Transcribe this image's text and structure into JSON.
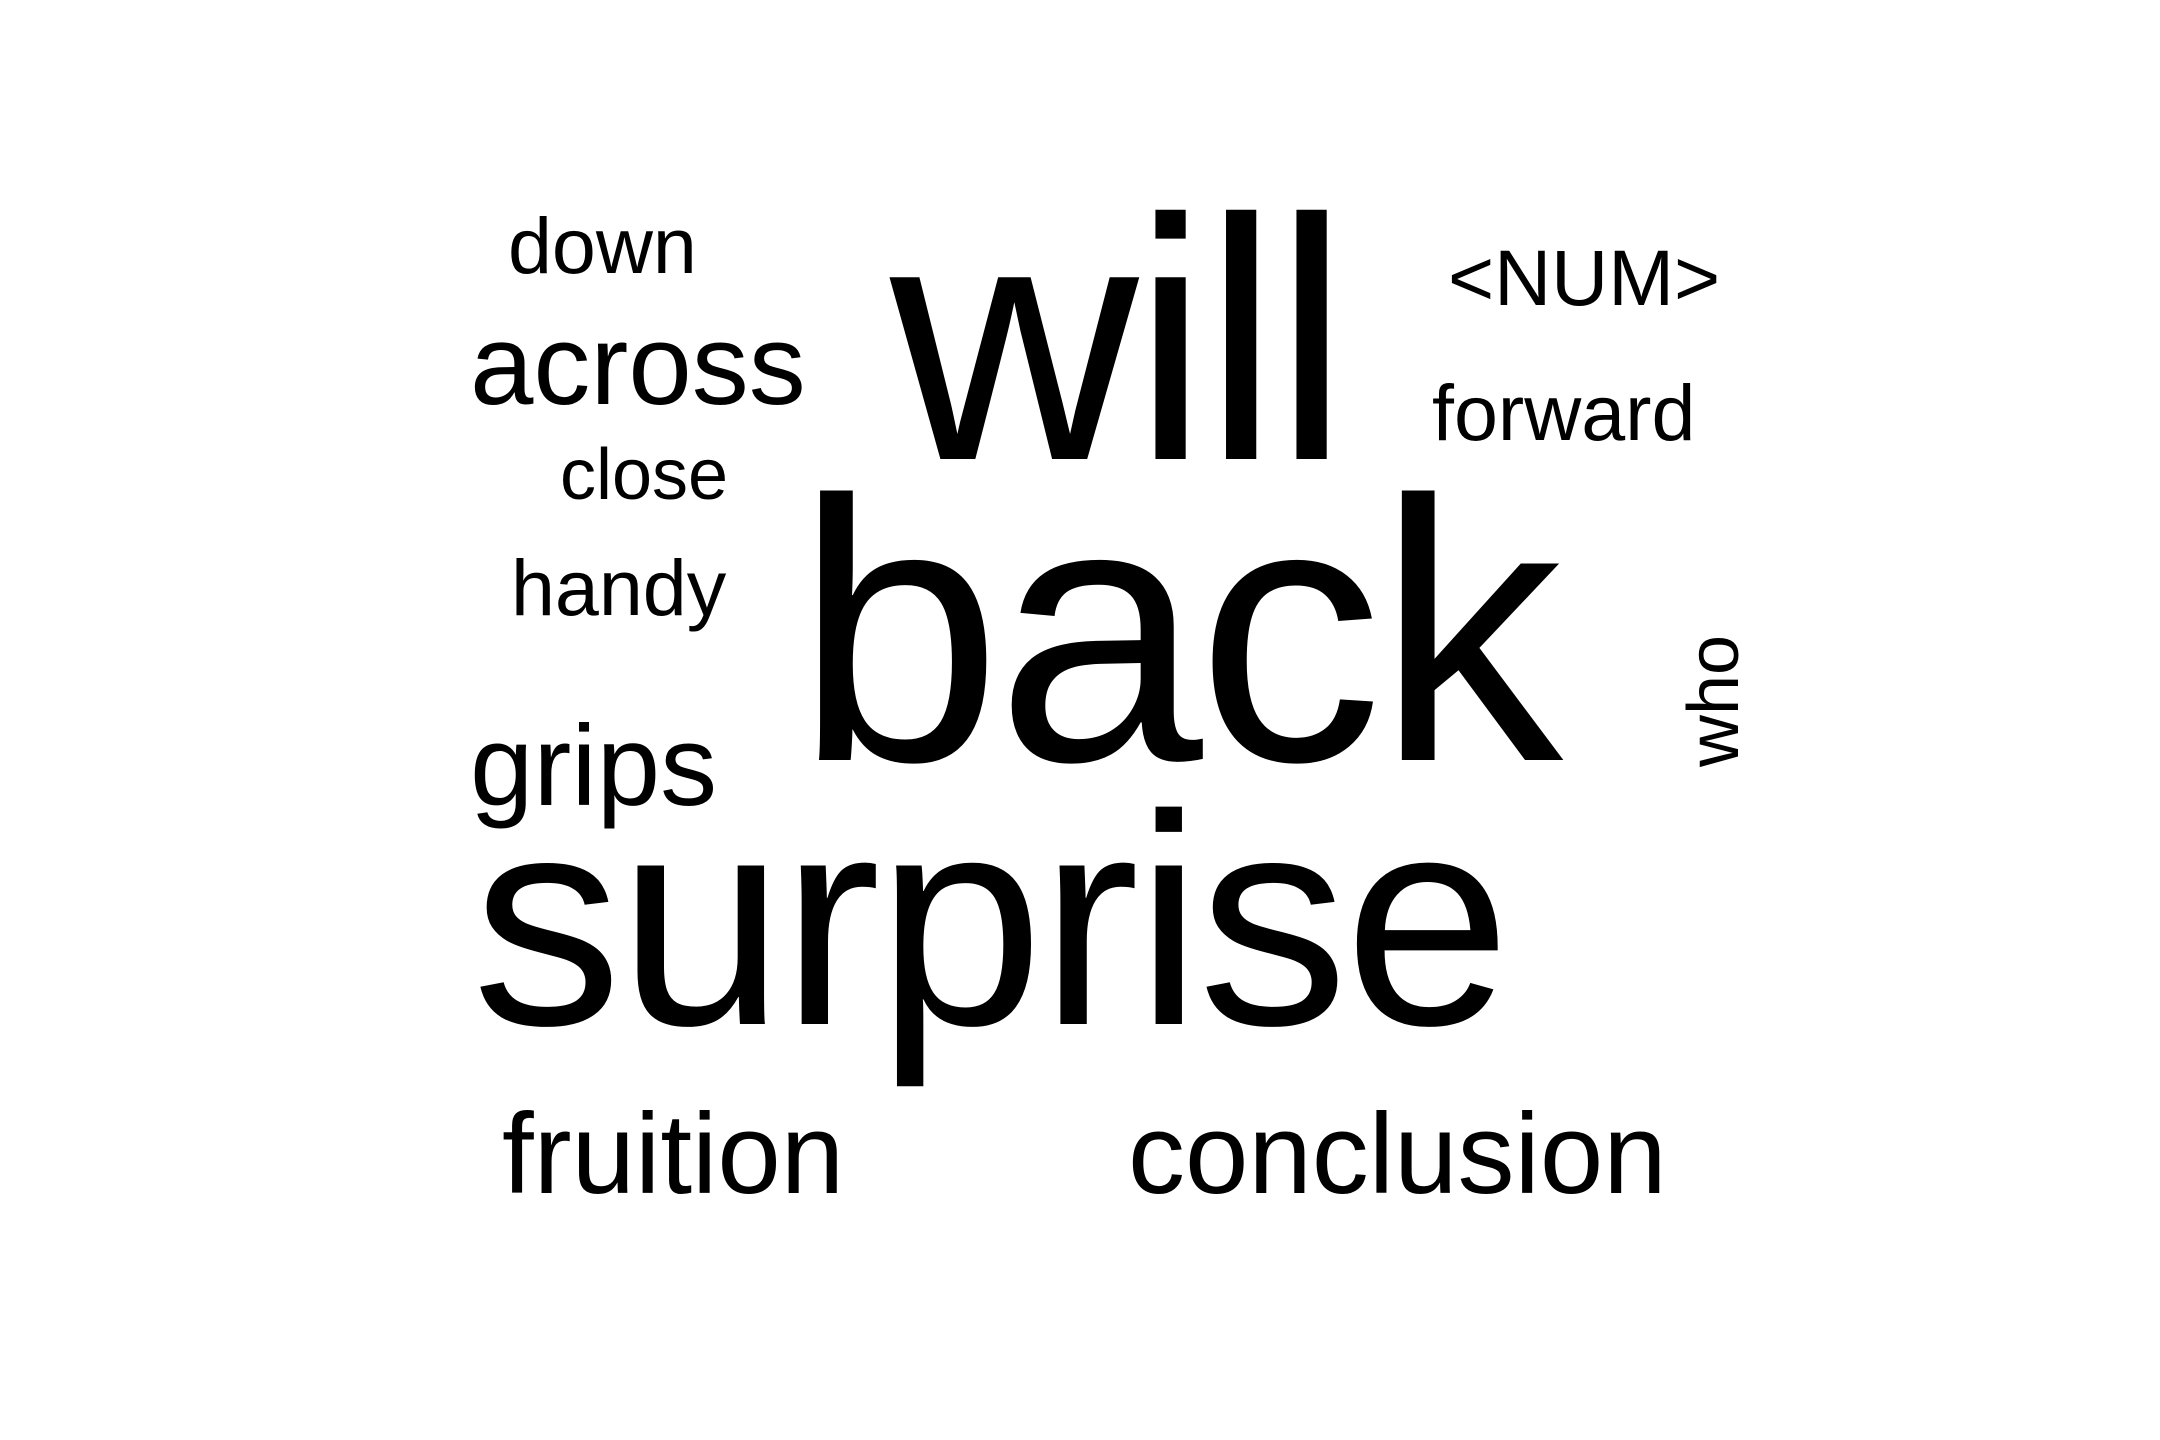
{
  "word_cloud": {
    "words": [
      {
        "text": "down"
      },
      {
        "text": "across"
      },
      {
        "text": "close"
      },
      {
        "text": "handy"
      },
      {
        "text": "grips"
      },
      {
        "text": "will"
      },
      {
        "text": "<NUM>"
      },
      {
        "text": "forward"
      },
      {
        "text": "back"
      },
      {
        "text": "who"
      },
      {
        "text": "surprise"
      },
      {
        "text": "fruition"
      },
      {
        "text": "conclusion"
      }
    ],
    "colors": {
      "text": "#000000",
      "background": "#ffffff"
    }
  }
}
